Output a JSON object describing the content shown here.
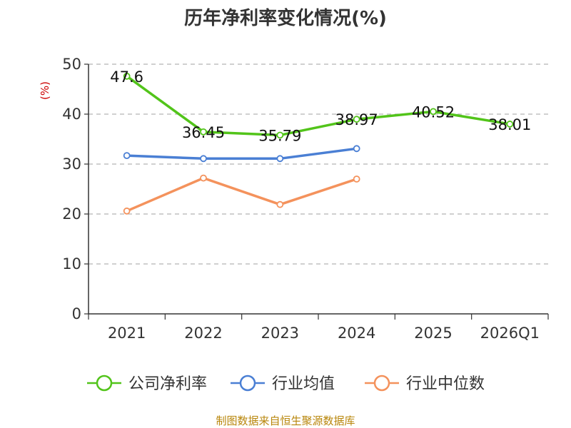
{
  "chart_data": {
    "type": "line",
    "title": "历年净利率变化情况(%)",
    "ylabel": "(%)",
    "xlabel": "",
    "categories": [
      "2021",
      "2022",
      "2023",
      "2024",
      "2025",
      "2026Q1"
    ],
    "yticks": [
      "0",
      "10",
      "20",
      "30",
      "40",
      "50"
    ],
    "ylim": [
      0,
      50
    ],
    "grid": true,
    "legend_position": "bottom",
    "series": [
      {
        "name": "公司净利率",
        "color": "#52c41a",
        "values": [
          47.6,
          36.45,
          35.79,
          38.97,
          40.52,
          38.01
        ],
        "labels": [
          "47.6",
          "36.45",
          "35.79",
          "38.97",
          "40.52",
          "38.01"
        ]
      },
      {
        "name": "行业均值",
        "color": "#4a7fd4",
        "values": [
          31.7,
          31.1,
          31.1,
          33.1,
          null,
          null
        ]
      },
      {
        "name": "行业中位数",
        "color": "#f4925c",
        "values": [
          20.6,
          27.2,
          21.9,
          27.0,
          null,
          null
        ]
      }
    ]
  },
  "source": "制图数据来自恒生聚源数据库"
}
